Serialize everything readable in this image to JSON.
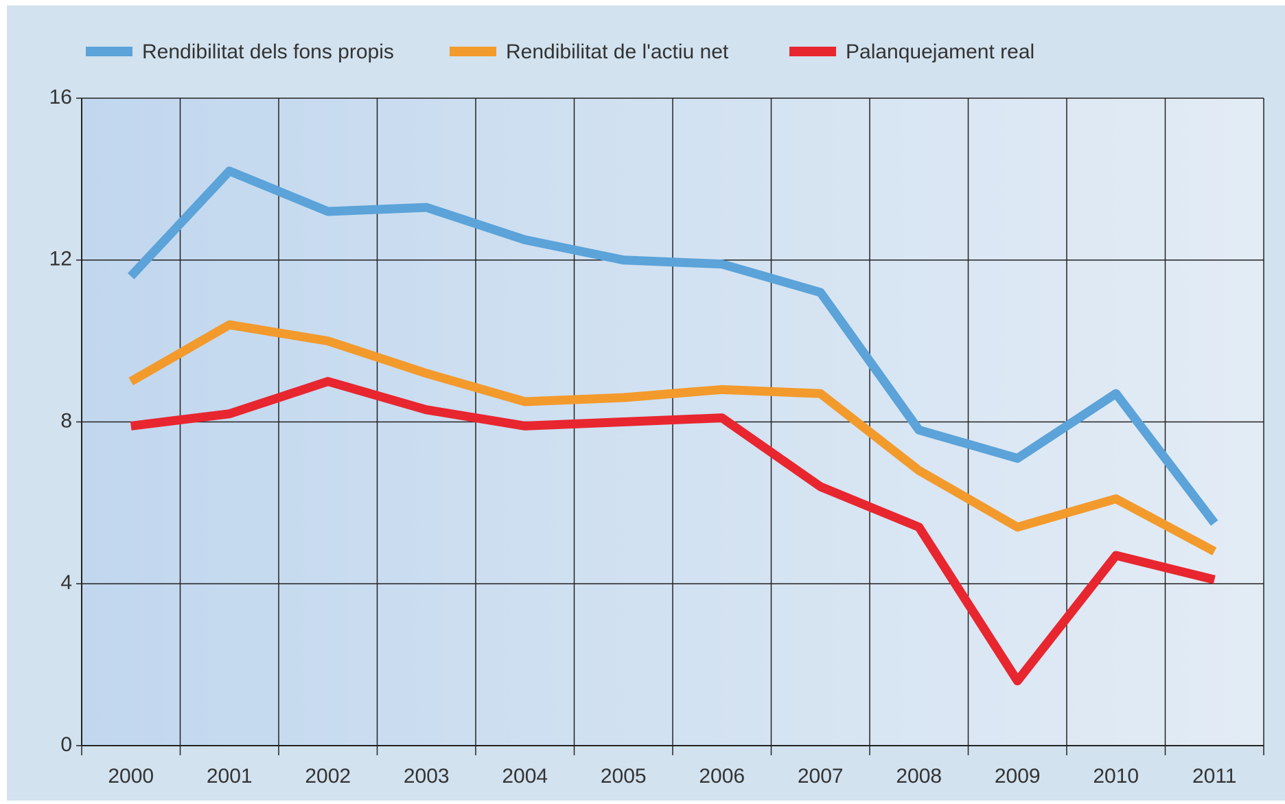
{
  "chart_data": {
    "type": "line",
    "categories": [
      "2000",
      "2001",
      "2002",
      "2003",
      "2004",
      "2005",
      "2006",
      "2007",
      "2008",
      "2009",
      "2010",
      "2011"
    ],
    "series": [
      {
        "name": "Rendibilitat dels fons propis",
        "color": "#5ba3d9",
        "values": [
          11.6,
          14.2,
          13.2,
          13.3,
          12.5,
          12.0,
          11.9,
          11.2,
          7.8,
          7.1,
          8.7,
          5.5
        ]
      },
      {
        "name": "Rendibilitat de l'actiu net",
        "color": "#f39a2c",
        "values": [
          9.0,
          10.4,
          10.0,
          9.2,
          8.5,
          8.6,
          8.8,
          8.7,
          6.8,
          5.4,
          6.1,
          4.8
        ]
      },
      {
        "name": "Palanquejament real",
        "color": "#e8262f",
        "values": [
          7.9,
          8.2,
          9.0,
          8.3,
          7.9,
          8.0,
          8.1,
          6.4,
          5.4,
          1.6,
          4.7,
          4.1
        ]
      }
    ],
    "ylim": [
      0,
      16
    ],
    "yticks": [
      0,
      4,
      8,
      12,
      16
    ],
    "grid": true,
    "legend": "top"
  }
}
